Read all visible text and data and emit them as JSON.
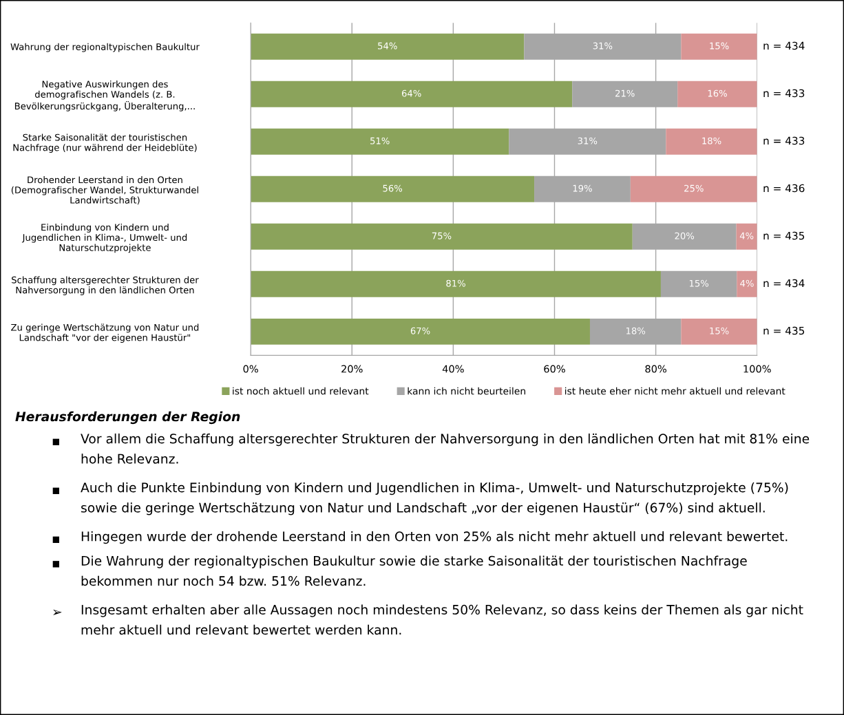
{
  "chart_data": {
    "type": "bar",
    "orientation": "horizontal",
    "stacked": true,
    "categories": [
      "Wahrung der regionaltypischen Baukultur",
      "Negative Auswirkungen des\ndemografischen Wandels (z. B.\nBevölkerungsrückgang, Überalterung,...",
      "Starke Saisonalität der touristischen\nNachfrage (nur während der Heideblüte)",
      "Drohender Leerstand in den Orten\n(Demografischer Wandel, Strukturwandel\nLandwirtschaft)",
      "Einbindung von Kindern und\nJugendlichen in Klima-, Umwelt- und\nNaturschutzprojekte",
      "Schaffung altersgerechter Strukturen der\nNahversorgung in den ländlichen Orten",
      "Zu geringe Wertschätzung von Natur und\nLandschaft \"vor der eigenen Haustür\""
    ],
    "series": [
      {
        "name": "ist noch aktuell und relevant",
        "color": "#8ba35b",
        "values": [
          54,
          63.5,
          51,
          56,
          75.4,
          81,
          67
        ],
        "value_labels": [
          "54%",
          "64%",
          "51%",
          "56%",
          "75%",
          "81%",
          "67%"
        ]
      },
      {
        "name": "kann ich nicht beurteilen",
        "color": "#a6a6a6",
        "values": [
          31,
          20.8,
          31,
          19,
          20.5,
          15,
          18
        ],
        "value_labels": [
          "31%",
          "21%",
          "31%",
          "19%",
          "20%",
          "15%",
          "18%"
        ]
      },
      {
        "name": "ist heute eher nicht mehr aktuell und relevant",
        "color": "#d99594",
        "values": [
          15,
          15.7,
          18,
          25,
          4.1,
          4,
          15
        ],
        "value_labels": [
          "15%",
          "16%",
          "18%",
          "25%",
          "4%",
          "4%",
          "15%"
        ]
      }
    ],
    "xlim": [
      0,
      100
    ],
    "xticks": [
      {
        "value": 0,
        "label": "0%"
      },
      {
        "value": 20,
        "label": "20%"
      },
      {
        "value": 40,
        "label": "40%"
      },
      {
        "value": 60,
        "label": "60%"
      },
      {
        "value": 80,
        "label": "80%"
      },
      {
        "value": 100,
        "label": "100%"
      }
    ],
    "grid": "x",
    "legend": "bottom",
    "annotations": [
      "n = 434",
      "n = 433",
      "n = 433",
      "n = 436",
      "n = 435",
      "n = 434",
      "n = 435",
      "Herausforderungen der Region",
      "▪ Vor allem die Schaffung altersgerechter Strukturen der Nahversorgung in den ländlichen Orten hat mit 81% eine hohe Relevanz.",
      "▪ Auch die Punkte Einbindung von Kindern und Jugendlichen in Klima-, Umwelt- und Naturschutzprojekte (75%) sowie die geringe Wertschätzung von Natur und Landschaft „vor der eigenen Haustür“ (67%) sind aktuell.",
      "▪ Hingegen wurde der drohende Leerstand in den Orten von 25% als nicht mehr aktuell und relevant bewertet.",
      "▪ Die Wahrung der regionaltypischen Baukultur sowie die starke Saisonalität der touristischen Nachfrage bekommen nur noch 54 bzw. 51% Relevanz.",
      "➢ Insgesamt erhalten aber alle Aussagen noch mindestens 50% Relevanz, so dass keins der Themen als gar nicht mehr aktuell und relevant bewertet werden kann."
    ]
  }
}
